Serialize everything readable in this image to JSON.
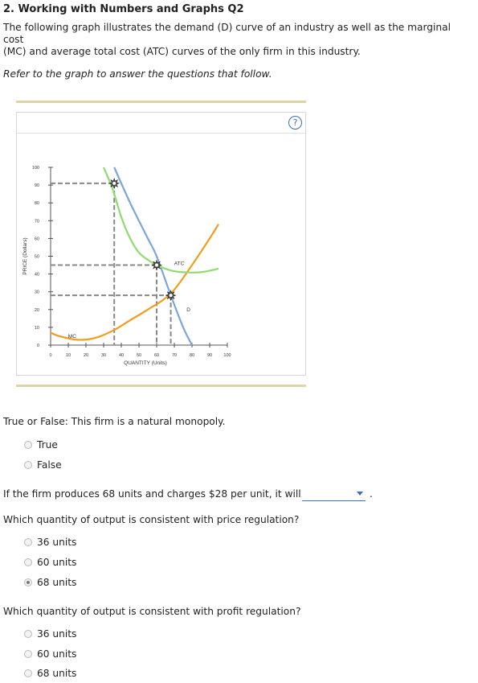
{
  "header": {
    "title": "2. Working with Numbers and Graphs Q2"
  },
  "intro": {
    "line1": "The following graph illustrates the demand (D) curve of an industry as well as the marginal cost",
    "line2": "(MC) and average total cost (ATC) curves of the only firm in this industry.",
    "refer": "Refer to the graph to answer the questions that follow."
  },
  "graph": {
    "help_label": "?",
    "colors": {
      "demand": "#7ba6d6",
      "mc": "#f39c1c",
      "atc": "#8fdc6c",
      "dash": "#888888",
      "rule": "#ddd5a8"
    }
  },
  "chart_data": {
    "type": "line",
    "xlabel": "QUANTITY (Units)",
    "ylabel": "PRICE (Dollars)",
    "xlim": [
      0,
      100
    ],
    "ylim": [
      0,
      100
    ],
    "x_ticks": [
      0,
      10,
      20,
      30,
      40,
      50,
      60,
      70,
      80,
      90,
      100
    ],
    "y_ticks": [
      0,
      10,
      20,
      30,
      40,
      50,
      60,
      70,
      80,
      90,
      100
    ],
    "series": [
      {
        "name": "D",
        "points": [
          [
            36,
            100
          ],
          [
            45,
            80
          ],
          [
            55,
            60
          ],
          [
            60,
            50
          ],
          [
            68,
            28
          ],
          [
            75,
            10
          ],
          [
            80,
            0
          ]
        ]
      },
      {
        "name": "MC",
        "points": [
          [
            0,
            7
          ],
          [
            5,
            5
          ],
          [
            15,
            3
          ],
          [
            25,
            4
          ],
          [
            35,
            8
          ],
          [
            45,
            14
          ],
          [
            55,
            20
          ],
          [
            68,
            29
          ],
          [
            80,
            45
          ],
          [
            90,
            60
          ],
          [
            95,
            68
          ]
        ]
      },
      {
        "name": "ATC",
        "points": [
          [
            30,
            100
          ],
          [
            35,
            88
          ],
          [
            40,
            72
          ],
          [
            45,
            60
          ],
          [
            50,
            52
          ],
          [
            55,
            48
          ],
          [
            60,
            45
          ],
          [
            68,
            42
          ],
          [
            75,
            41
          ],
          [
            85,
            41
          ],
          [
            95,
            43
          ]
        ]
      }
    ],
    "markers": [
      {
        "x": 36,
        "y": 91
      },
      {
        "x": 60,
        "y": 45
      },
      {
        "x": 68,
        "y": 28
      }
    ],
    "dashed_guides": [
      {
        "x": 36,
        "y": 91
      },
      {
        "x": 60,
        "y": 45
      },
      {
        "x": 68,
        "y": 28
      }
    ]
  },
  "q1": {
    "text": "True or False: This firm is a natural monopoly.",
    "options": [
      {
        "label": "True",
        "selected": false
      },
      {
        "label": "False",
        "selected": false
      }
    ]
  },
  "q2": {
    "text": "If the firm produces 68 units and charges $28 per unit, it will",
    "dropdown_value": "",
    "suffix": "."
  },
  "q3": {
    "text": "Which quantity of output is consistent with price regulation?",
    "options": [
      {
        "label": "36 units",
        "selected": false
      },
      {
        "label": "60 units",
        "selected": false
      },
      {
        "label": "68 units",
        "selected": true
      }
    ]
  },
  "q4": {
    "text": "Which quantity of output is consistent with profit regulation?",
    "options": [
      {
        "label": "36 units",
        "selected": false
      },
      {
        "label": "60 units",
        "selected": false
      },
      {
        "label": "68 units",
        "selected": false
      }
    ]
  }
}
